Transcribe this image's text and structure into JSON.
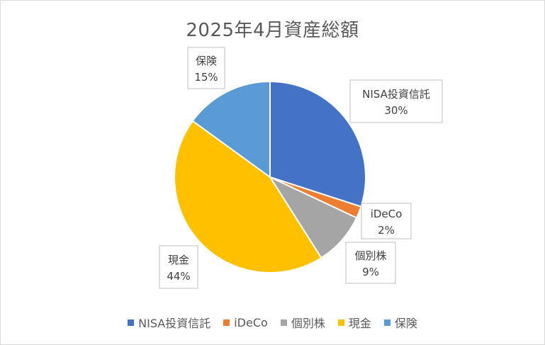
{
  "chart_data": {
    "type": "pie",
    "title": "2025年4月資産総額",
    "categories": [
      "NISA投資信託",
      "iDeCo",
      "個別株",
      "現金",
      "保険"
    ],
    "values": [
      30,
      2,
      9,
      44,
      15
    ],
    "labels": [
      "30%",
      "2%",
      "9%",
      "44%",
      "15%"
    ],
    "colors": [
      "#4472C4",
      "#ED7D31",
      "#A5A5A5",
      "#FFC000",
      "#5B9BD5"
    ],
    "legend": "bottom"
  }
}
